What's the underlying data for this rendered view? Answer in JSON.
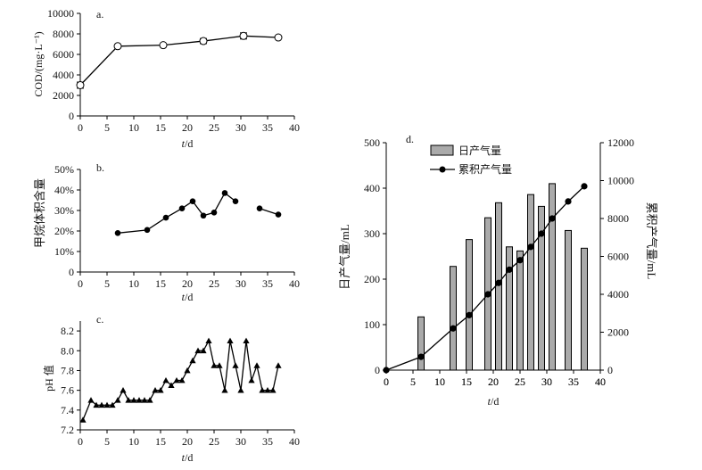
{
  "chart_data": [
    {
      "panel": "a.",
      "type": "line",
      "marker": "open-circle",
      "x": [
        0,
        7,
        15.5,
        23,
        30.5,
        37
      ],
      "y": [
        3000,
        6800,
        6900,
        7300,
        7800,
        7650
      ],
      "error": [
        300,
        150,
        100,
        250,
        300,
        100
      ],
      "ylabel": "COD/(mg·L⁻¹)",
      "xlabel_italic": "t",
      "xlabel_unit": "/d",
      "xlim": [
        0,
        40
      ],
      "ylim": [
        0,
        10000
      ],
      "xticks": [
        0,
        5,
        10,
        15,
        20,
        25,
        30,
        35,
        40
      ],
      "yticks": [
        0,
        2000,
        4000,
        6000,
        8000,
        10000
      ],
      "xtick_labels": [
        "0",
        "5",
        "10",
        "15",
        "20",
        "25",
        "30",
        "35",
        "40"
      ],
      "ytick_labels": [
        "0",
        "2000",
        "4000",
        "6000",
        "8000",
        "10000"
      ]
    },
    {
      "panel": "b.",
      "type": "line",
      "marker": "filled-circle",
      "segments": [
        {
          "x": [
            7,
            12.5,
            16,
            19,
            21,
            23,
            25,
            27,
            29
          ],
          "y": [
            19,
            20.5,
            26.5,
            31,
            34.5,
            27.5,
            29,
            38.5,
            34.5
          ]
        },
        {
          "x": [
            33.5,
            37
          ],
          "y": [
            31,
            28
          ]
        }
      ],
      "ylabel": "甲烷体积含量",
      "xlabel_italic": "t",
      "xlabel_unit": "/d",
      "xlim": [
        0,
        40
      ],
      "ylim": [
        0,
        50
      ],
      "xticks": [
        0,
        5,
        10,
        15,
        20,
        25,
        30,
        35,
        40
      ],
      "yticks": [
        0,
        10,
        20,
        30,
        40,
        50
      ],
      "xtick_labels": [
        "0",
        "5",
        "10",
        "15",
        "20",
        "25",
        "30",
        "35",
        "40"
      ],
      "ytick_labels": [
        "0",
        "10%",
        "20%",
        "30%",
        "40%",
        "50%"
      ]
    },
    {
      "panel": "c.",
      "type": "line",
      "marker": "filled-triangle",
      "x": [
        0.5,
        2,
        3,
        4,
        5,
        6,
        7,
        8,
        9,
        10,
        11,
        12,
        13,
        14,
        15,
        16,
        17,
        18,
        19,
        20,
        21,
        22,
        23,
        24,
        25,
        26,
        27,
        28,
        29,
        30,
        31,
        32,
        33,
        34,
        35,
        36,
        37
      ],
      "y": [
        7.3,
        7.5,
        7.45,
        7.45,
        7.45,
        7.45,
        7.5,
        7.6,
        7.5,
        7.5,
        7.5,
        7.5,
        7.5,
        7.6,
        7.6,
        7.7,
        7.65,
        7.7,
        7.7,
        7.8,
        7.9,
        8.0,
        8.0,
        8.1,
        7.85,
        7.85,
        7.6,
        8.1,
        7.85,
        7.6,
        8.1,
        7.7,
        7.85,
        7.6,
        7.6,
        7.6,
        7.85
      ],
      "ylabel": "pH 值",
      "xlabel_italic": "t",
      "xlabel_unit": "/d",
      "xlim": [
        0,
        40
      ],
      "ylim": [
        7.2,
        8.3
      ],
      "xticks": [
        0,
        5,
        10,
        15,
        20,
        25,
        30,
        35,
        40
      ],
      "yticks": [
        7.2,
        7.4,
        7.6,
        7.8,
        8.0,
        8.2
      ],
      "xtick_labels": [
        "0",
        "5",
        "10",
        "15",
        "20",
        "25",
        "30",
        "35",
        "40"
      ],
      "ytick_labels": [
        "7.2",
        "7.4",
        "7.6",
        "7.8",
        "8.0",
        "8.2"
      ]
    },
    {
      "panel": "d.",
      "type": "bar+line",
      "bars": {
        "name": "日产气量",
        "x": [
          6.5,
          12.5,
          15.5,
          19,
          21,
          23,
          25,
          27,
          29,
          31,
          34,
          37
        ],
        "values": [
          117,
          228,
          287,
          335,
          368,
          271,
          262,
          386,
          360,
          410,
          307,
          268
        ],
        "color": "#aaaaaa"
      },
      "line": {
        "name": "累积产气量",
        "x": [
          0,
          6.5,
          12.5,
          15.5,
          19,
          21,
          23,
          25,
          27,
          29,
          31,
          34,
          37
        ],
        "values": [
          0,
          700,
          2200,
          2900,
          4000,
          4600,
          5300,
          5800,
          6500,
          7200,
          8000,
          8900,
          9700
        ]
      },
      "ylabel_left": "日产气量/mL",
      "ylabel_right": "累积产气量/mL",
      "xlabel_italic": "t",
      "xlabel_unit": "/d",
      "xlim": [
        0,
        40
      ],
      "ylim_left": [
        0,
        500
      ],
      "ylim_right": [
        0,
        12000
      ],
      "xticks": [
        0,
        5,
        10,
        15,
        20,
        25,
        30,
        35,
        40
      ],
      "yticks_left": [
        0,
        100,
        200,
        300,
        400,
        500
      ],
      "yticks_right": [
        0,
        2000,
        4000,
        6000,
        8000,
        10000,
        12000
      ],
      "xtick_labels": [
        "0",
        "5",
        "10",
        "15",
        "20",
        "25",
        "30",
        "35",
        "40"
      ],
      "ytick_labels_left": [
        "0",
        "100",
        "200",
        "300",
        "400",
        "500"
      ],
      "ytick_labels_right": [
        "0",
        "2000",
        "4000",
        "6000",
        "8000",
        "10000",
        "12000"
      ]
    }
  ]
}
